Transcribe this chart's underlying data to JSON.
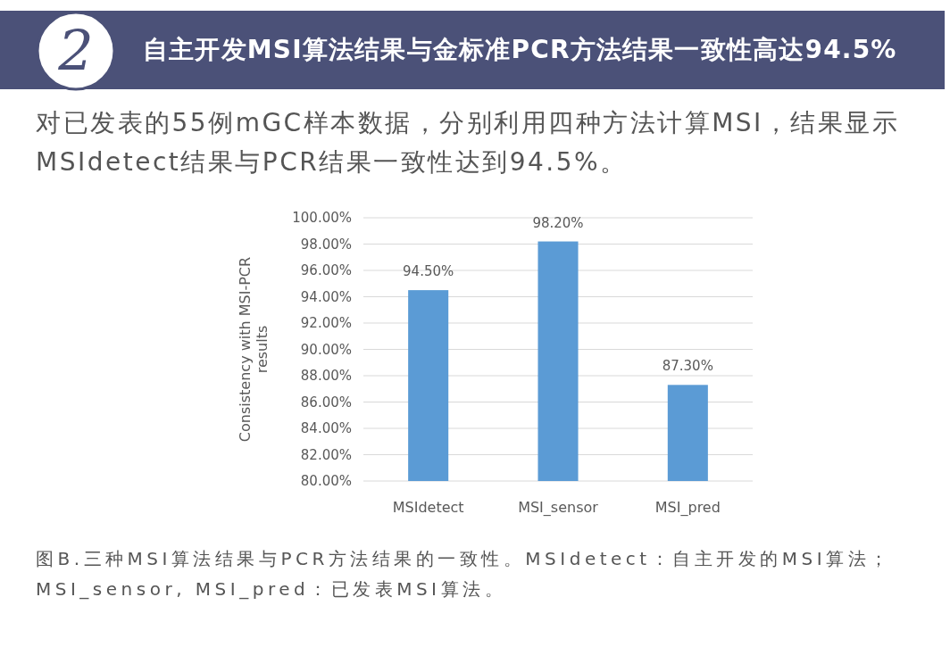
{
  "chart_data": {
    "type": "bar",
    "title": "自主开发MSI算法结果与金标准PCR方法结果一致性高达94.5%",
    "subtitle": "对已发表的55例mGC样本数据，分别利用四种方法计算MSI，结果显示MSIdetect结果与PCR结果一致性达到94.5%。",
    "ylabel": "Consistency with MSI-PCR results",
    "categories": [
      "MSIdetect",
      "MSI_sensor",
      "MSI_pred"
    ],
    "values": [
      94.5,
      98.2,
      87.3
    ],
    "value_labels": [
      "94.50%",
      "98.20%",
      "87.30%"
    ],
    "color": "#5b9bd5",
    "ylim": [
      80,
      100
    ],
    "yticks": [
      {
        "value": 80,
        "label": "80.00%"
      },
      {
        "value": 82,
        "label": "82.00%"
      },
      {
        "value": 84,
        "label": "84.00%"
      },
      {
        "value": 86,
        "label": "86.00%"
      },
      {
        "value": 88,
        "label": "88.00%"
      },
      {
        "value": 90,
        "label": "90.00%"
      },
      {
        "value": 92,
        "label": "92.00%"
      },
      {
        "value": 94,
        "label": "94.00%"
      },
      {
        "value": 96,
        "label": "96.00%"
      },
      {
        "value": 98,
        "label": "98.00%"
      },
      {
        "value": 100,
        "label": "100.00%"
      }
    ],
    "grid": "y",
    "annotations": [
      "2",
      "图B.三种MSI算法结果与PCR方法结果的一致性。MSIdetect：自主开发的MSI算法；MSI_sensor, MSI_pred：已发表MSI算法。"
    ]
  }
}
